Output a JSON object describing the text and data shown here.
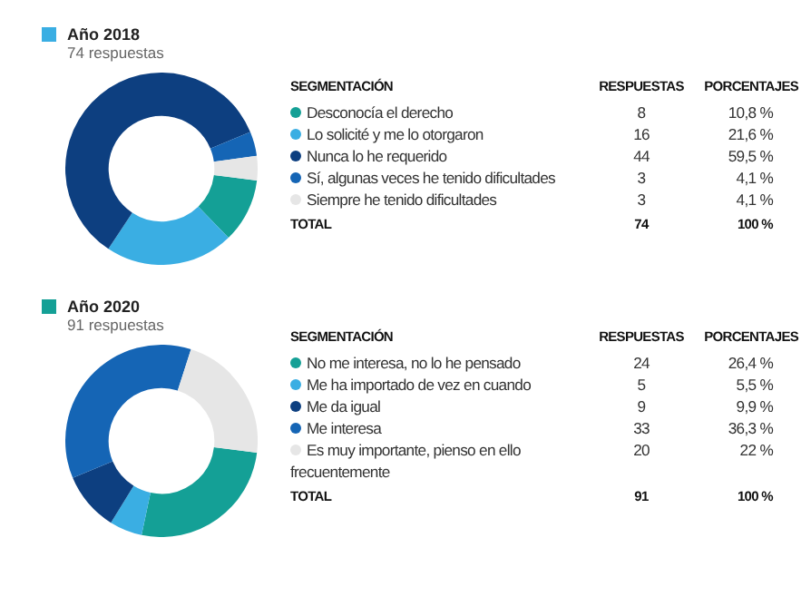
{
  "chart_data": [
    {
      "type": "donut",
      "title": "Año 2018",
      "subtitle": "74 respuestas",
      "legend": "right",
      "categories": [
        "Desconocía el derecho",
        "Lo solicité y me lo otorgaron",
        "Nunca lo he requerido",
        "Sí, algunas veces he tenido dificultades",
        "Siempre he tenido dificultades"
      ],
      "values": [
        10.8,
        21.6,
        59.5,
        4.1,
        4.1
      ],
      "value_labels": [
        "10,8 %",
        "21,6 %",
        "59,5 %",
        "4,1 %",
        "4,1 %"
      ],
      "colors": [
        "#14a096",
        "#3aaee3",
        "#0d3f80",
        "#1565b5",
        "#e6e6e6"
      ],
      "annotations": [
        "SEGMENTACIÓN",
        "RESPUESTAS",
        "PORCENTAJES",
        "8",
        "16",
        "44",
        "3",
        "3",
        "TOTAL",
        "74",
        "100 %"
      ]
    },
    {
      "type": "donut",
      "title": "Año 2020",
      "subtitle": "91 respuestas",
      "legend": "right",
      "categories": [
        "No me interesa, no lo he pensado",
        "Me ha importado de vez en cuando",
        "Me da igual",
        "Me interesa",
        "Es muy importante, pienso en ello frecuentemente"
      ],
      "values": [
        26.4,
        5.5,
        9.9,
        36.3,
        22
      ],
      "value_labels": [
        "26,4 %",
        "5,5 %",
        "9,9 %",
        "36,3 %",
        "22 %"
      ],
      "colors": [
        "#14a096",
        "#3aaee3",
        "#0d3f80",
        "#1565b5",
        "#e6e6e6"
      ],
      "annotations": [
        "SEGMENTACIÓN",
        "RESPUESTAS",
        "PORCENTAJES",
        "24",
        "5",
        "9",
        "33",
        "20",
        "TOTAL",
        "91",
        "100 %"
      ]
    }
  ]
}
